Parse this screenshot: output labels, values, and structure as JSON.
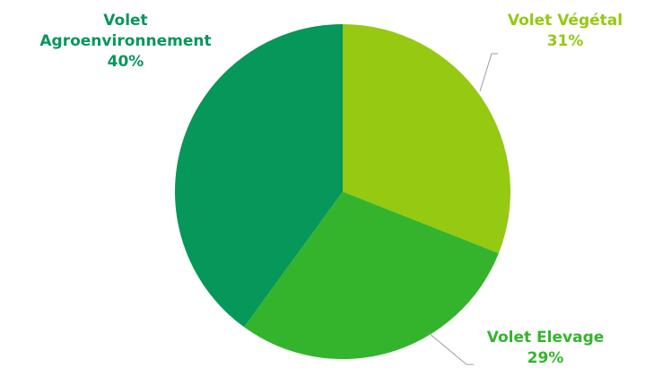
{
  "chart_data": {
    "type": "pie",
    "slices": [
      {
        "label": "Volet Végétal",
        "value": 31,
        "value_label": "31%",
        "color": "#95c912"
      },
      {
        "label": "Volet Elevage",
        "value": 29,
        "value_label": "29%",
        "color": "#34b42d"
      },
      {
        "label": "Volet Agroenvironnement",
        "value": 40,
        "value_label": "40%",
        "color": "#06975a"
      }
    ],
    "start_angle": "12 o'clock",
    "direction": "clockwise",
    "label_colors": {
      "vegetal": "#95c912",
      "elevage": "#34b42d",
      "agro": "#06975a"
    },
    "leader_line_color": "#9e9e9e"
  },
  "labels": {
    "vegetal": {
      "name": "Volet Végétal",
      "pct": "31%"
    },
    "elevage": {
      "name": "Volet Elevage",
      "pct": "29%"
    },
    "agro": {
      "name_line1": "Volet",
      "name_line2": "Agroenvironnement",
      "pct": "40%"
    }
  }
}
